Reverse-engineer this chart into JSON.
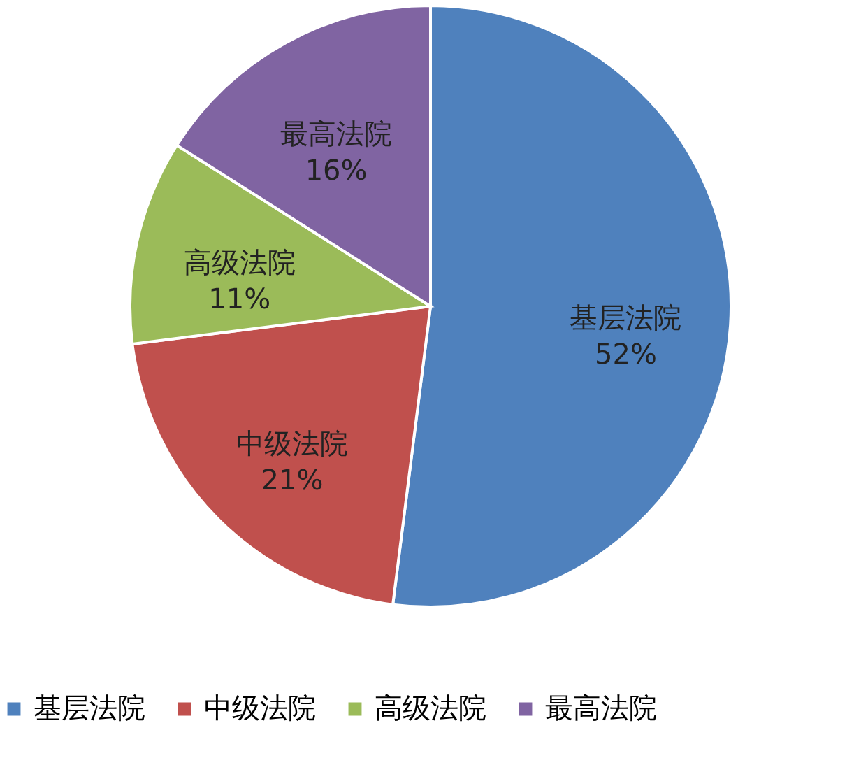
{
  "chart_data": {
    "type": "pie",
    "categories": [
      "基层法院",
      "中级法院",
      "高级法院",
      "最高法院"
    ],
    "values": [
      52,
      21,
      11,
      16
    ],
    "value_labels": [
      "52%",
      "21%",
      "11%",
      "16%"
    ],
    "colors": [
      "#4f81bd",
      "#c0504d",
      "#9bbb59",
      "#8064a2"
    ],
    "legend": "bottom"
  }
}
